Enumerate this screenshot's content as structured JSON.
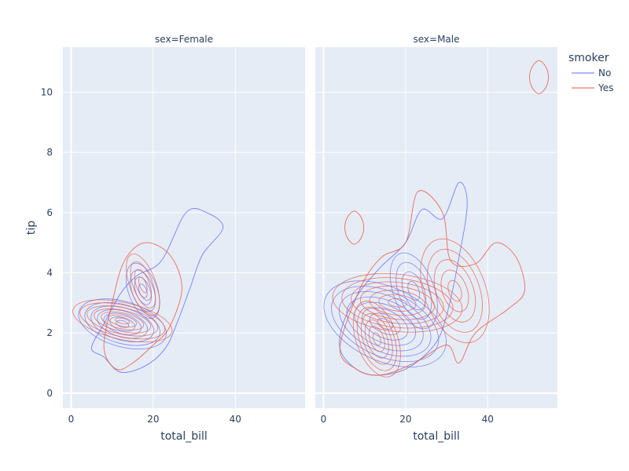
{
  "chart_data": {
    "type": "contour",
    "facet_variable": "sex",
    "facets": [
      {
        "title": "sex=Female",
        "xlabel": "total_bill",
        "xlim": [
          -2,
          57
        ]
      },
      {
        "title": "sex=Male",
        "xlabel": "total_bill",
        "xlim": [
          -2,
          57
        ]
      }
    ],
    "ylabel": "tip",
    "ylim": [
      -0.5,
      11.5
    ],
    "xticks": [
      0,
      20,
      40
    ],
    "yticks": [
      0,
      2,
      4,
      6,
      8,
      10
    ],
    "legend": {
      "title": "smoker",
      "placement": "top-right",
      "items": [
        {
          "name": "No",
          "color": "#636efa"
        },
        {
          "name": "Yes",
          "color": "#ef553b"
        }
      ]
    },
    "series": [
      {
        "facet": 0,
        "smoker": "No",
        "color": "#636efa",
        "outer_contour": [
          [
            5,
            1.5
          ],
          [
            8,
            1.2
          ],
          [
            12,
            0.7
          ],
          [
            18,
            0.9
          ],
          [
            23,
            1.5
          ],
          [
            26,
            2.4
          ],
          [
            29,
            3.5
          ],
          [
            32,
            4.6
          ],
          [
            37,
            5.5
          ],
          [
            33,
            6.0
          ],
          [
            28,
            6.0
          ],
          [
            22,
            4.4
          ],
          [
            16,
            3.9
          ],
          [
            12,
            3.3
          ],
          [
            8,
            2.3
          ]
        ],
        "peaks": [
          {
            "x": 12.5,
            "y": 2.3,
            "rx": 5.5,
            "ry": 1.25,
            "levels": 7,
            "tilt": 0.12
          },
          {
            "x": 17.5,
            "y": 3.4,
            "rx": 3.5,
            "ry": 0.8,
            "levels": 4,
            "tilt": 0
          }
        ]
      },
      {
        "facet": 0,
        "smoker": "Yes",
        "color": "#ef553b",
        "outer_contour": [
          [
            8,
            1.5
          ],
          [
            11,
            0.8
          ],
          [
            15,
            1.0
          ],
          [
            20,
            1.6
          ],
          [
            24,
            2.2
          ],
          [
            27,
            3.5
          ],
          [
            24,
            4.6
          ],
          [
            18,
            5.0
          ],
          [
            13,
            4.4
          ],
          [
            10,
            3.0
          ]
        ],
        "peaks": [
          {
            "x": 12.5,
            "y": 2.4,
            "rx": 4.5,
            "ry": 1.4,
            "levels": 7,
            "tilt": 0.1
          },
          {
            "x": 17.5,
            "y": 3.6,
            "rx": 3.2,
            "ry": 0.9,
            "levels": 4,
            "tilt": 0
          }
        ]
      },
      {
        "facet": 1,
        "smoker": "No",
        "color": "#636efa",
        "outer_contour": [
          [
            4,
            1.5
          ],
          [
            7,
            0.9
          ],
          [
            12,
            0.6
          ],
          [
            20,
            0.8
          ],
          [
            27,
            1.6
          ],
          [
            30,
            2.6
          ],
          [
            33,
            4.5
          ],
          [
            35,
            6.3
          ],
          [
            33,
            7.0
          ],
          [
            29,
            5.8
          ],
          [
            24,
            6.1
          ],
          [
            20,
            5.0
          ],
          [
            14,
            4.2
          ],
          [
            9,
            3.4
          ],
          [
            5,
            2.4
          ]
        ],
        "peaks": [
          {
            "x": 15,
            "y": 2.3,
            "rx": 9.0,
            "ry": 1.8,
            "levels": 8,
            "tilt": 0.1
          },
          {
            "x": 22,
            "y": 3.4,
            "rx": 5.0,
            "ry": 1.1,
            "levels": 4,
            "tilt": 0
          }
        ]
      },
      {
        "facet": 1,
        "smoker": "Yes",
        "color": "#ef553b",
        "outer_contour": [
          [
            4,
            1.5
          ],
          [
            8,
            0.8
          ],
          [
            14,
            0.6
          ],
          [
            22,
            1.0
          ],
          [
            30,
            1.6
          ],
          [
            33,
            1.0
          ],
          [
            37,
            2.0
          ],
          [
            45,
            2.8
          ],
          [
            49,
            3.4
          ],
          [
            47,
            4.5
          ],
          [
            42,
            5.0
          ],
          [
            37,
            4.3
          ],
          [
            31,
            4.4
          ],
          [
            29,
            6.0
          ],
          [
            23,
            6.7
          ],
          [
            20,
            5.0
          ],
          [
            14,
            4.5
          ],
          [
            9,
            3.5
          ]
        ],
        "peaks": [
          {
            "x": 13,
            "y": 1.8,
            "rx": 5.0,
            "ry": 1.1,
            "levels": 6,
            "tilt": 0
          },
          {
            "x": 18,
            "y": 3.0,
            "rx": 7.0,
            "ry": 1.8,
            "levels": 7,
            "tilt": 0.15
          },
          {
            "x": 32,
            "y": 3.4,
            "rx": 7.5,
            "ry": 1.5,
            "levels": 5,
            "tilt": 0
          }
        ],
        "islands": [
          {
            "x": 7.5,
            "y": 5.5,
            "rx": 2.3,
            "ry": 0.5
          },
          {
            "x": 52.5,
            "y": 10.5,
            "rx": 2.3,
            "ry": 0.5
          }
        ]
      }
    ]
  }
}
